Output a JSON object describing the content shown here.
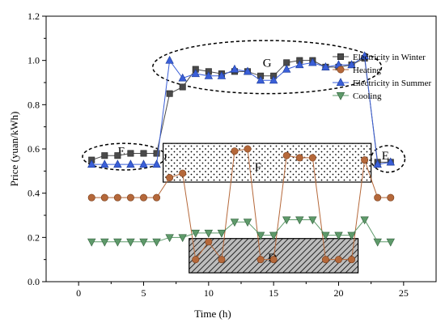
{
  "chart_data": {
    "type": "line",
    "xlabel": "Time (h)",
    "ylabel": "Price (yuan/kWh)",
    "xlim": [
      -2.5,
      27.5
    ],
    "ylim": [
      0,
      1.2
    ],
    "xticks": [
      0,
      5,
      10,
      15,
      20,
      25
    ],
    "yticks": [
      0.0,
      0.2,
      0.4,
      0.6,
      0.8,
      1.0,
      1.2
    ],
    "xtick_labels": [
      "0",
      "5",
      "10",
      "15",
      "20",
      "25"
    ],
    "ytick_labels": [
      "0.0",
      "0.2",
      "0.4",
      "0.6",
      "0.8",
      "1.0",
      "1.2"
    ],
    "legend_position": "top-right",
    "x": [
      1,
      2,
      3,
      4,
      5,
      6,
      7,
      8,
      9,
      10,
      11,
      12,
      13,
      14,
      15,
      16,
      17,
      18,
      19,
      20,
      21,
      22,
      23,
      24
    ],
    "series": [
      {
        "name": "Electricity in Winter",
        "color": "#4a4a4a",
        "marker": "square",
        "values": [
          0.55,
          0.57,
          0.57,
          0.58,
          0.58,
          0.58,
          0.85,
          0.88,
          0.96,
          0.95,
          0.94,
          0.95,
          0.95,
          0.93,
          0.93,
          0.99,
          1.0,
          1.0,
          0.97,
          0.97,
          0.98,
          1.01,
          0.54,
          0.54
        ]
      },
      {
        "name": "Heating",
        "color": "#b5683a",
        "marker": "circle",
        "values": [
          0.38,
          0.38,
          0.38,
          0.38,
          0.38,
          0.38,
          0.47,
          0.49,
          0.1,
          0.18,
          0.1,
          0.59,
          0.6,
          0.1,
          0.1,
          0.57,
          0.56,
          0.56,
          0.1,
          0.1,
          0.1,
          0.55,
          0.38,
          0.38
        ]
      },
      {
        "name": "Electricity in Summer",
        "color": "#3a5fd8",
        "marker": "triangle-up",
        "values": [
          0.53,
          0.53,
          0.53,
          0.53,
          0.53,
          0.53,
          1.0,
          0.92,
          0.94,
          0.93,
          0.93,
          0.96,
          0.95,
          0.91,
          0.91,
          0.96,
          0.98,
          0.99,
          0.97,
          0.98,
          0.98,
          1.02,
          0.53,
          0.54
        ]
      },
      {
        "name": "Cooling",
        "color": "#5e9a6a",
        "marker": "triangle-down",
        "values": [
          0.18,
          0.18,
          0.18,
          0.18,
          0.18,
          0.18,
          0.2,
          0.2,
          0.22,
          0.22,
          0.22,
          0.27,
          0.27,
          0.21,
          0.21,
          0.28,
          0.28,
          0.28,
          0.21,
          0.21,
          0.21,
          0.28,
          0.18,
          0.18
        ]
      }
    ],
    "annotations": {
      "ellipses": [
        {
          "label": "E",
          "cx": 3.5,
          "cy": 0.565,
          "rx": 3.2,
          "ry": 0.06
        },
        {
          "label": "E",
          "cx": 23.8,
          "cy": 0.555,
          "rx": 1.3,
          "ry": 0.06
        },
        {
          "label": "G",
          "cx": 14.5,
          "cy": 0.97,
          "rx": 8.8,
          "ry": 0.12
        }
      ],
      "boxes": [
        {
          "label": "F",
          "x0": 6.5,
          "x1": 22.5,
          "y0": 0.45,
          "y1": 0.625,
          "pattern": "dots"
        },
        {
          "label": "D",
          "x0": 8.5,
          "x1": 21.5,
          "y0": 0.04,
          "y1": 0.195,
          "pattern": "hatch"
        }
      ],
      "labels": [
        {
          "text": "E",
          "x": 3.3,
          "y": 0.59
        },
        {
          "text": "E",
          "x": 23.6,
          "y": 0.57
        },
        {
          "text": "G",
          "x": 14.5,
          "y": 0.99
        },
        {
          "text": "F",
          "x": 13.8,
          "y": 0.52
        },
        {
          "text": "D",
          "x": 14.9,
          "y": 0.11
        }
      ]
    }
  }
}
